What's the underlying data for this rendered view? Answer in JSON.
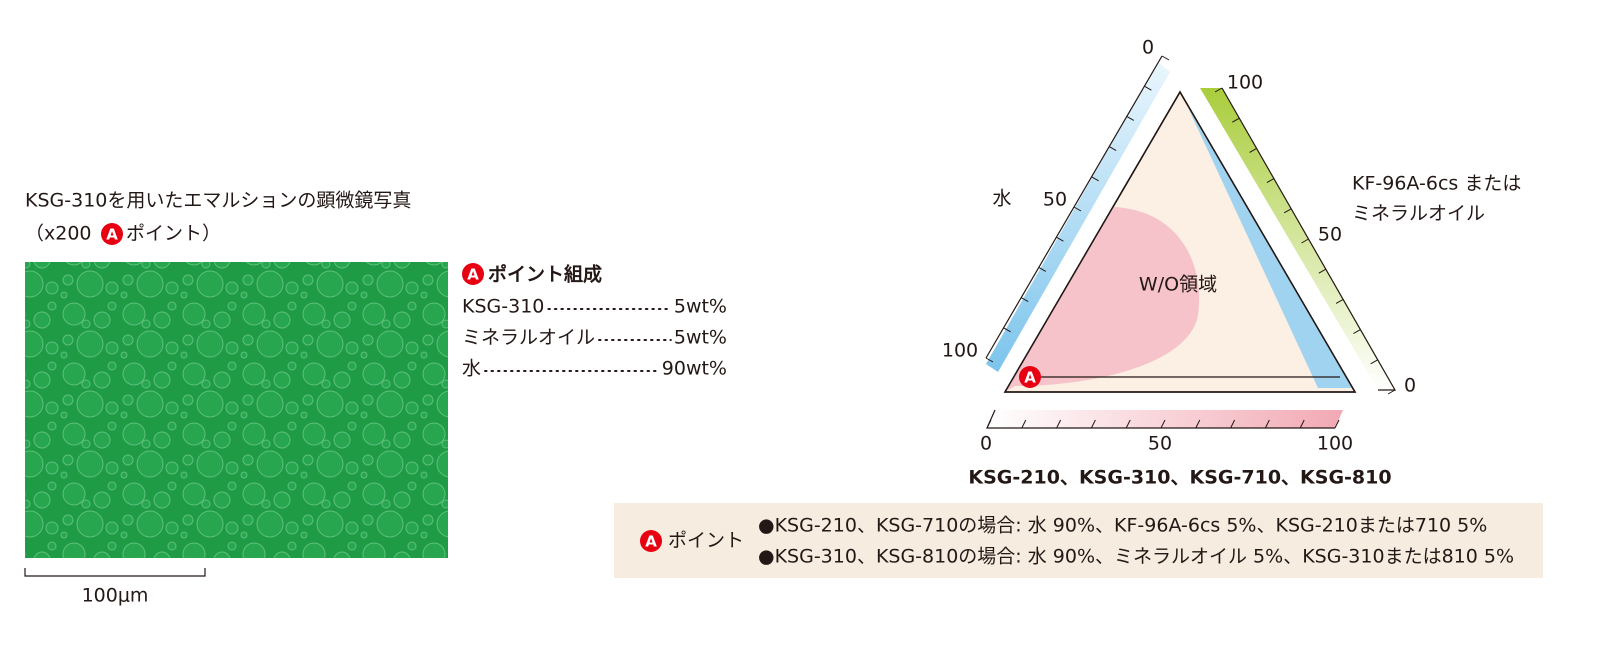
{
  "badge": "A",
  "photo": {
    "title": "KSG-310を用いたエマルションの顕微鏡写真",
    "subtitle_open": "（x200",
    "subtitle_close": "ポイント）",
    "scale_label": "100μm"
  },
  "composition": {
    "title": "ポイント組成",
    "rows": [
      [
        "KSG-310",
        "5wt%"
      ],
      [
        "ミネラルオイル",
        "5wt%"
      ],
      [
        "水",
        "90wt%"
      ]
    ]
  },
  "diagram": {
    "left_axis": {
      "name": "水",
      "labels": [
        "0",
        "50",
        "100"
      ]
    },
    "right_axis": {
      "name_lines": [
        "KF-96A-6cs または",
        "ミネラルオイル"
      ],
      "labels": [
        "100",
        "50",
        "0"
      ]
    },
    "bottom_axis": {
      "name": "KSG-210、KSG-310、KSG-710、KSG-810",
      "labels": [
        "0",
        "50",
        "100"
      ]
    },
    "region_label": "W/O領域"
  },
  "note": {
    "title": "ポイント",
    "lines": [
      "●KSG-210、KSG-710の場合: 水 90%、KF-96A-6cs 5%、KSG-210または710 5%",
      "●KSG-310、KSG-810の場合: 水 90%、ミネラルオイル 5%、KSG-310または810 5%"
    ]
  }
}
